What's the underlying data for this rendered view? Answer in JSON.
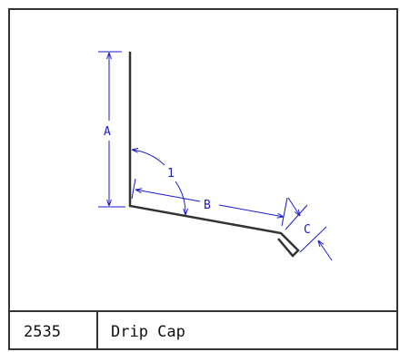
{
  "part": {
    "number": "2535",
    "name": "Drip Cap"
  },
  "dimensions": {
    "a": "A",
    "b": "B",
    "c": "C",
    "angle": "1"
  },
  "colors": {
    "outline": "#333333",
    "dimension": "#1a1acc",
    "background": "#ffffff"
  }
}
